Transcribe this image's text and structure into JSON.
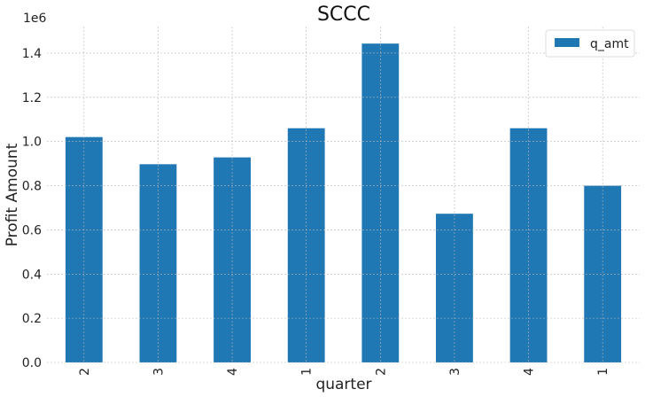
{
  "chart_data": {
    "type": "bar",
    "title": "SCCC",
    "xlabel": "quarter",
    "ylabel": "Profit Amount",
    "offset_label": "1e6",
    "categories": [
      "2",
      "3",
      "4",
      "1",
      "2",
      "3",
      "4",
      "1"
    ],
    "series": [
      {
        "name": "q_amt",
        "color": "#1f77b4",
        "values": [
          1020000,
          897000,
          928000,
          1060000,
          1443000,
          673000,
          1060000,
          800000
        ]
      }
    ],
    "ylim": [
      0,
      1520000
    ],
    "yticks": [
      0,
      200000,
      400000,
      600000,
      800000,
      1000000,
      1200000,
      1400000
    ],
    "ytick_labels": [
      "0.0",
      "0.2",
      "0.4",
      "0.6",
      "0.8",
      "1.0",
      "1.2",
      "1.4"
    ],
    "grid": true,
    "legend_position": "top-right"
  }
}
